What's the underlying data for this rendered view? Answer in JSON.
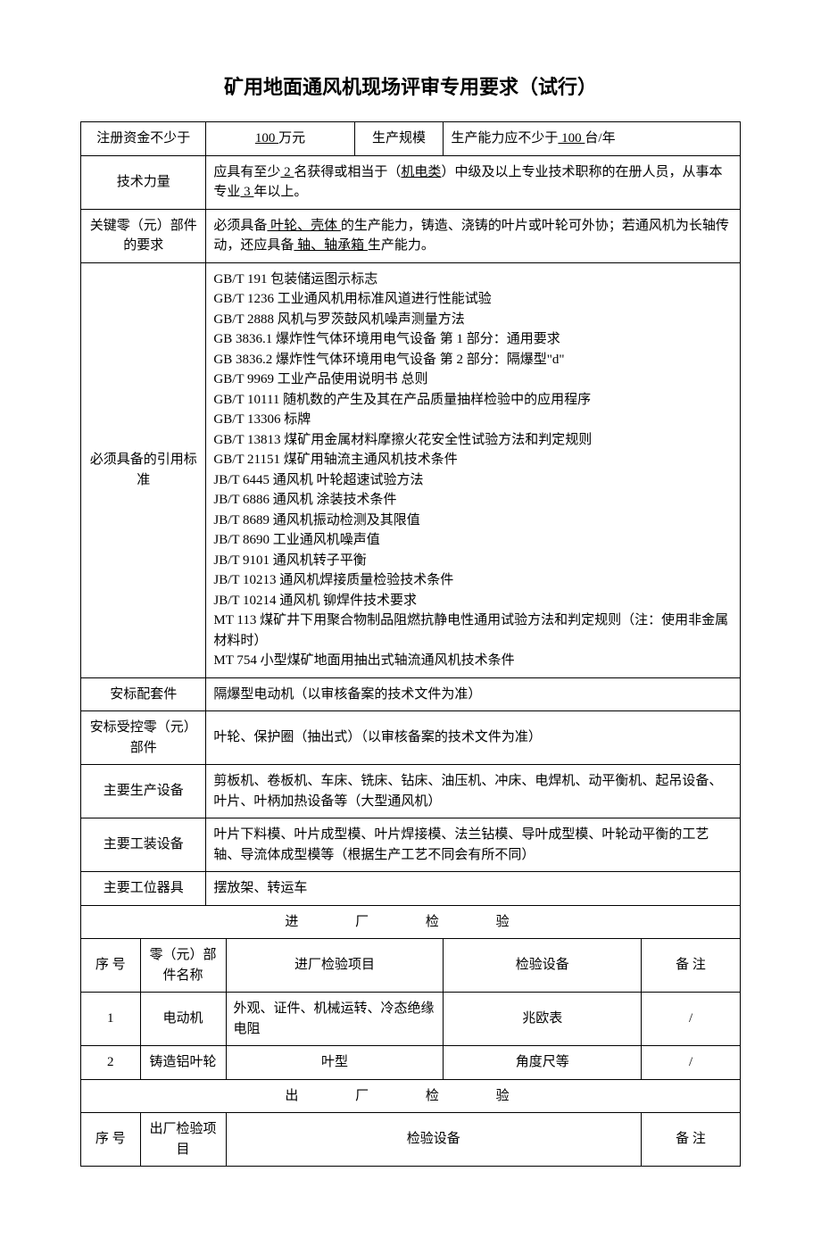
{
  "title": "矿用地面通风机现场评审专用要求（试行）",
  "rows": {
    "capital_label": "注册资金不少于",
    "capital_value_prefix": "",
    "capital_value_underline": "  100  ",
    "capital_value_suffix": "万元",
    "scale_label": "生产规模",
    "scale_value_prefix": "生产能力应不少于",
    "scale_value_underline": "  100  ",
    "scale_value_suffix": "台/年",
    "tech_label": "技术力量",
    "tech_t1": "应具有至少",
    "tech_u1": " 2 ",
    "tech_t2": "名获得或相当于（",
    "tech_u2": "机电类",
    "tech_t3": "）中级及以上专业技术职称的在册人员，从事本专业",
    "tech_u3": " 3 ",
    "tech_t4": "年以上。",
    "key_part_label": "关键零（元）部件的要求",
    "kp_t1": "必须具备",
    "kp_u1": "  叶轮、壳体  ",
    "kp_t2": "的生产能力，铸造、浇铸的叶片或叶轮可外协；若通风机为长轴传动，还应具备",
    "kp_u2": "  轴、轴承箱  ",
    "kp_t3": "生产能力。",
    "standards_label": "必须具备的引用标准",
    "standards": [
      "GB/T 191   包装储运图示标志",
      "GB/T 1236   工业通风机用标准风道进行性能试验",
      "GB/T 2888   风机与罗茨鼓风机噪声测量方法",
      "GB 3836.1   爆炸性气体环境用电气设备   第 1 部分：通用要求",
      "GB 3836.2   爆炸性气体环境用电气设备   第 2 部分：隔爆型\"d\"",
      "GB/T 9969   工业产品使用说明书   总则",
      "GB/T 10111   随机数的产生及其在产品质量抽样检验中的应用程序",
      "GB/T 13306   标牌",
      "GB/T 13813   煤矿用金属材料摩擦火花安全性试验方法和判定规则",
      "GB/T 21151   煤矿用轴流主通风机技术条件",
      "JB/T 6445   通风机   叶轮超速试验方法",
      "JB/T 6886   通风机 涂装技术条件",
      "JB/T 8689   通风机振动检测及其限值",
      "JB/T 8690   工业通风机噪声值",
      "JB/T 9101   通风机转子平衡",
      "JB/T 10213   通风机焊接质量检验技术条件",
      "JB/T 10214   通风机   铆焊件技术要求",
      "MT 113   煤矿井下用聚合物制品阻燃抗静电性通用试验方法和判定规则（注：使用非金属材料时）",
      "MT 754   小型煤矿地面用抽出式轴流通风机技术条件"
    ],
    "safety_kit_label": "安标配套件",
    "safety_kit_value": "隔爆型电动机（以审核备案的技术文件为准）",
    "safety_ctrl_label": "安标受控零（元）部件",
    "safety_ctrl_value": "叶轮、保护圈（抽出式）（以审核备案的技术文件为准）",
    "prod_equip_label": "主要生产设备",
    "prod_equip_value": "剪板机、卷板机、车床、铣床、钻床、油压机、冲床、电焊机、动平衡机、起吊设备、叶片、叶柄加热设备等（大型通风机）",
    "tooling_label": "主要工装设备",
    "tooling_value": "叶片下料模、叶片成型模、叶片焊接模、法兰钻模、导叶成型模、叶轮动平衡的工艺轴、导流体成型模等（根据生产工艺不同会有所不同）",
    "station_label": "主要工位器具",
    "station_value": "摆放架、转运车"
  },
  "incoming": {
    "section_title": "进 厂 检 验",
    "headers": {
      "seq": "序 号",
      "name": "零（元）部件名称",
      "item": "进厂检验项目",
      "equip": "检验设备",
      "remark": "备 注"
    },
    "rows": [
      {
        "seq": "1",
        "name": "电动机",
        "item": "外观、证件、机械运转、冷态绝缘电阻",
        "equip": "兆欧表",
        "remark": "/"
      },
      {
        "seq": "2",
        "name": "铸造铝叶轮",
        "item": "叶型",
        "equip": "角度尺等",
        "remark": "/"
      }
    ]
  },
  "outgoing": {
    "section_title": "出 厂 检 验",
    "headers": {
      "seq": "序 号",
      "name": "出厂检验项目",
      "equip": "检验设备",
      "remark": "备 注"
    }
  }
}
